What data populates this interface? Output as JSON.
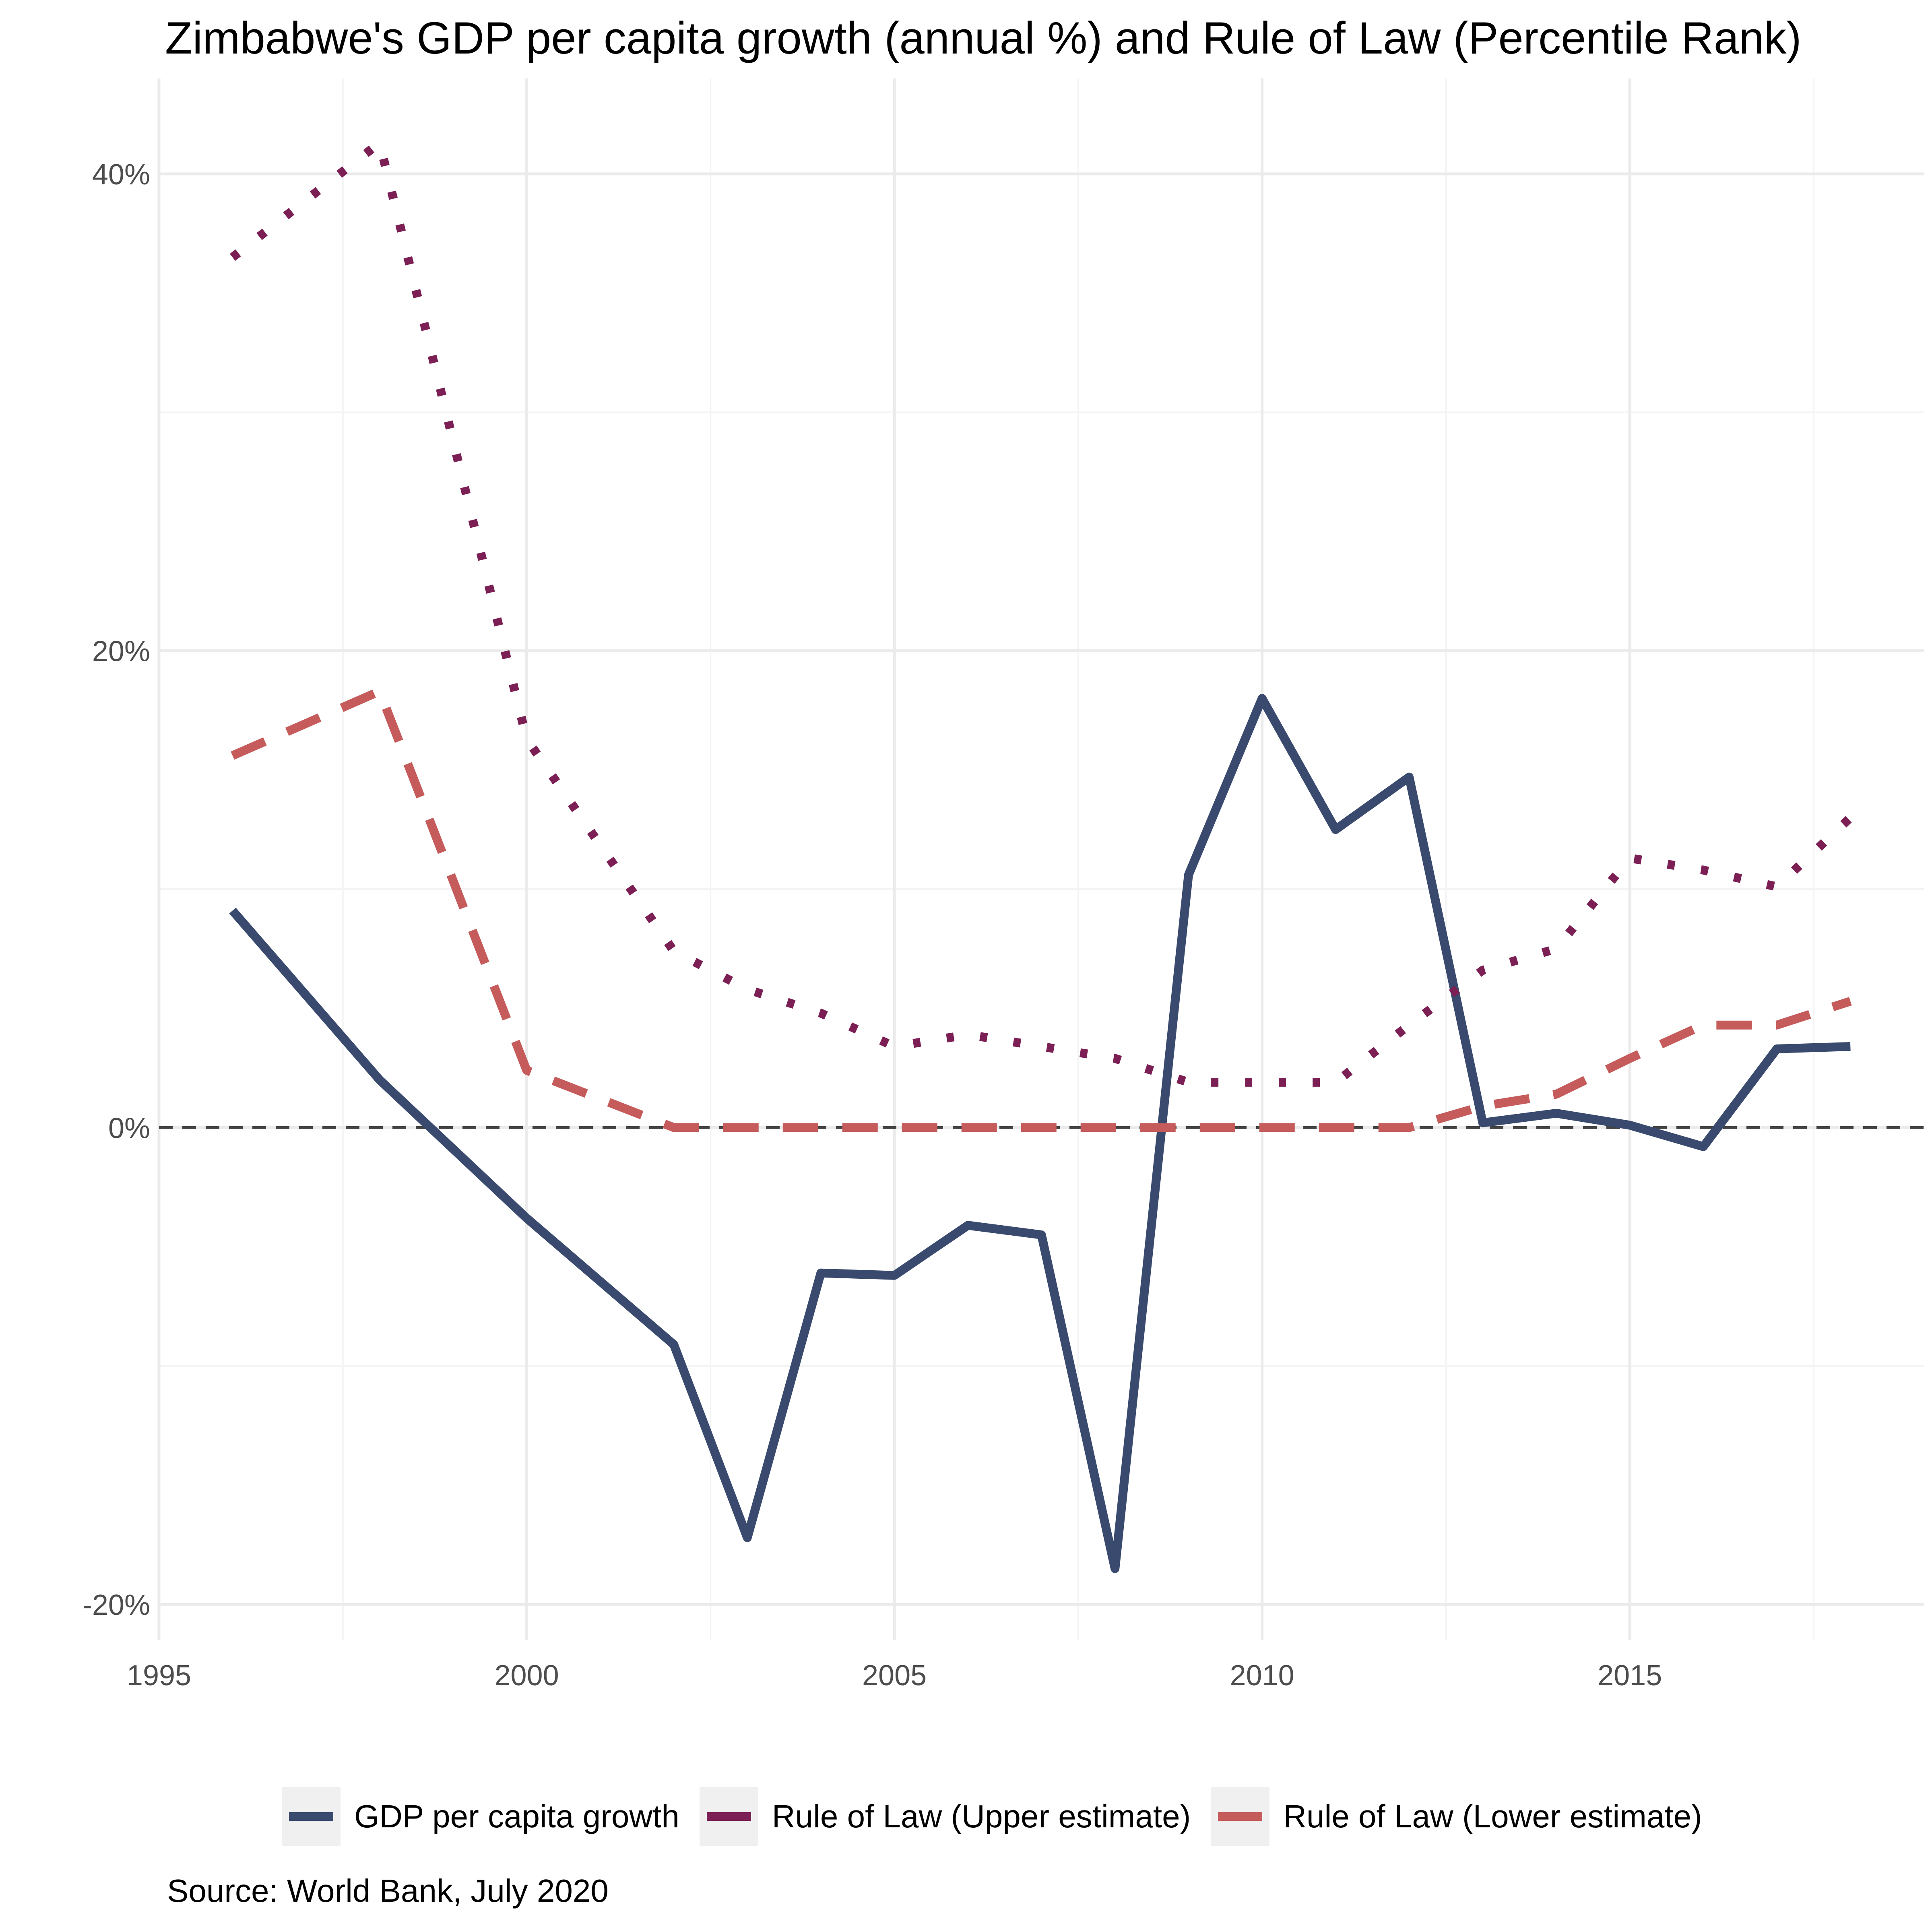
{
  "chart_data": {
    "type": "line",
    "title": "Zimbabwe's GDP per capita growth (annual %) and Rule of Law (Percentile Rank)",
    "caption": "Source: World Bank, July 2020",
    "xlabel": "",
    "ylabel": "",
    "xlim": [
      1995,
      2019
    ],
    "ylim": [
      -21.5,
      44
    ],
    "x_ticks": [
      {
        "value": 1995,
        "label": "1995"
      },
      {
        "value": 2000,
        "label": "2000"
      },
      {
        "value": 2005,
        "label": "2005"
      },
      {
        "value": 2010,
        "label": "2010"
      },
      {
        "value": 2015,
        "label": "2015"
      }
    ],
    "y_ticks": [
      {
        "value": -20,
        "label": "-20%"
      },
      {
        "value": 0,
        "label": "0%"
      },
      {
        "value": 20,
        "label": "20%"
      },
      {
        "value": 40,
        "label": "40%"
      }
    ],
    "reference_line": {
      "y": 0,
      "style": "dashed",
      "color": "#444444"
    },
    "grid": true,
    "legend_position": "bottom",
    "series": [
      {
        "name": "GDP per capita growth",
        "color": "#3a4a6e",
        "dash": "solid",
        "points": [
          [
            1996,
            9.1
          ],
          [
            1998,
            2.0
          ],
          [
            2000,
            -3.8
          ],
          [
            2002,
            -9.1
          ],
          [
            2003,
            -17.2
          ],
          [
            2004,
            -6.1
          ],
          [
            2005,
            -6.2
          ],
          [
            2006,
            -4.1
          ],
          [
            2007,
            -4.5
          ],
          [
            2008,
            -18.5
          ],
          [
            2009,
            10.6
          ],
          [
            2010,
            18.0
          ],
          [
            2011,
            12.5
          ],
          [
            2012,
            14.7
          ],
          [
            2013,
            0.2
          ],
          [
            2014,
            0.6
          ],
          [
            2015,
            0.1
          ],
          [
            2016,
            -0.8
          ],
          [
            2017,
            3.3
          ],
          [
            2018,
            3.4
          ]
        ]
      },
      {
        "name": "Rule of Law (Upper estimate)",
        "color": "#7b1f55",
        "dash": "dotted",
        "points": [
          [
            1996,
            36.5
          ],
          [
            1998,
            41.3
          ],
          [
            2000,
            16.3
          ],
          [
            2002,
            7.4
          ],
          [
            2003,
            5.8
          ],
          [
            2004,
            4.8
          ],
          [
            2005,
            3.4
          ],
          [
            2006,
            3.9
          ],
          [
            2007,
            3.4
          ],
          [
            2008,
            2.9
          ],
          [
            2009,
            1.9
          ],
          [
            2010,
            1.9
          ],
          [
            2011,
            1.9
          ],
          [
            2012,
            4.3
          ],
          [
            2013,
            6.6
          ],
          [
            2014,
            7.5
          ],
          [
            2015,
            11.3
          ],
          [
            2016,
            10.8
          ],
          [
            2017,
            10.1
          ],
          [
            2018,
            13.0
          ]
        ]
      },
      {
        "name": "Rule of Law (Lower estimate)",
        "color": "#c55b5b",
        "dash": "dashed",
        "points": [
          [
            1996,
            15.6
          ],
          [
            1998,
            18.3
          ],
          [
            2000,
            2.4
          ],
          [
            2002,
            0.0
          ],
          [
            2003,
            0.0
          ],
          [
            2004,
            0.0
          ],
          [
            2005,
            0.0
          ],
          [
            2006,
            0.0
          ],
          [
            2007,
            0.0
          ],
          [
            2008,
            0.0
          ],
          [
            2009,
            0.0
          ],
          [
            2010,
            0.0
          ],
          [
            2011,
            0.0
          ],
          [
            2012,
            0.0
          ],
          [
            2013,
            0.9
          ],
          [
            2014,
            1.4
          ],
          [
            2015,
            2.9
          ],
          [
            2016,
            4.3
          ],
          [
            2017,
            4.3
          ],
          [
            2018,
            5.3
          ]
        ]
      }
    ]
  }
}
